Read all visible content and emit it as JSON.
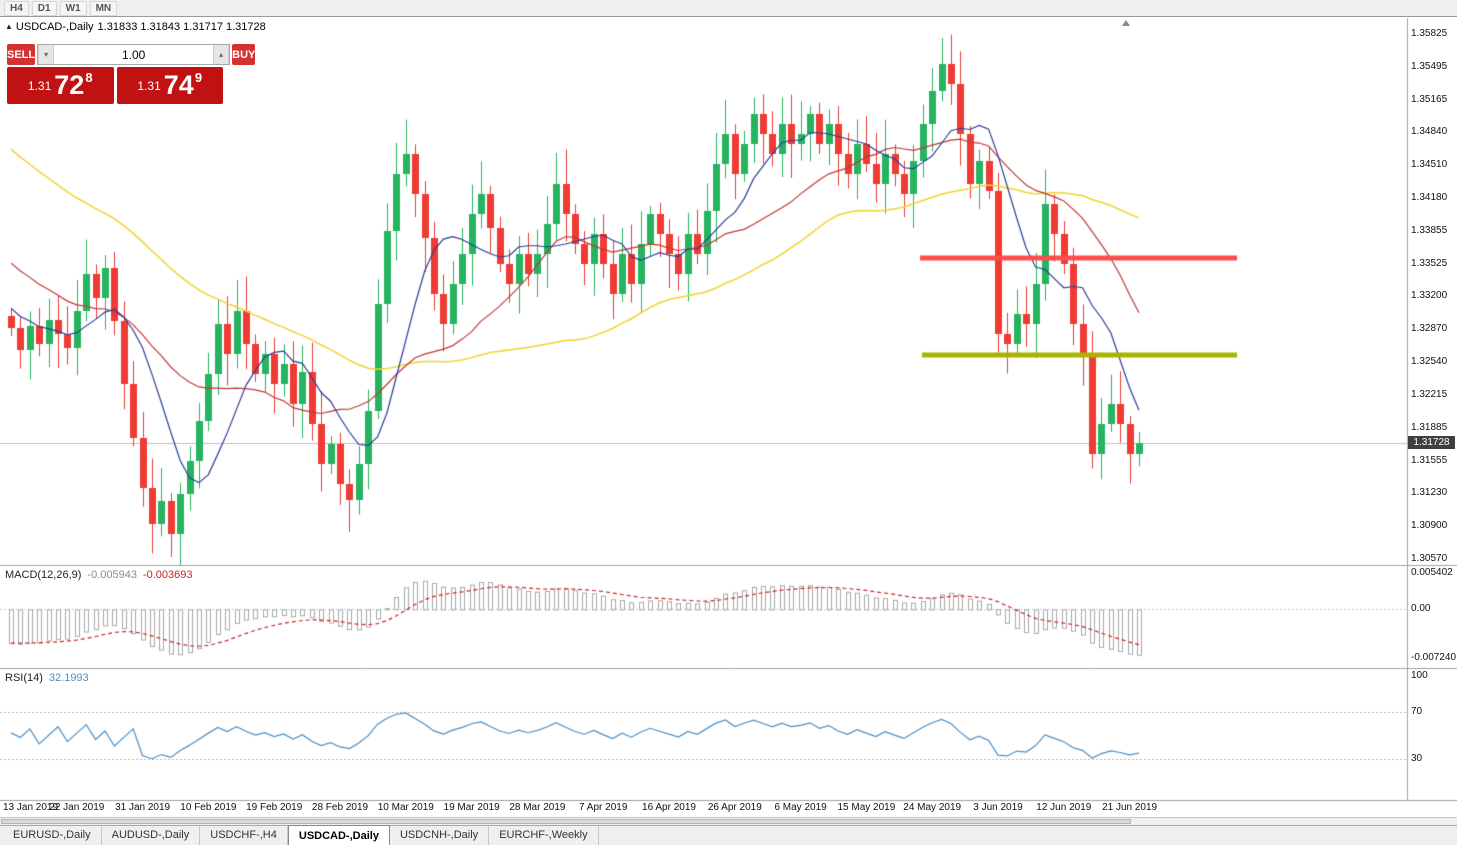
{
  "toolbar": {
    "timeframes": [
      "H4",
      "D1",
      "W1",
      "MN"
    ]
  },
  "chart": {
    "title_symbol": "USDCAD-,Daily",
    "title_ohlc": "1.31833 1.31843 1.31717 1.31728",
    "current_price": "1.31728",
    "price_axis_labels": [
      "1.35825",
      "1.35495",
      "1.35165",
      "1.34840",
      "1.34510",
      "1.34180",
      "1.33855",
      "1.33525",
      "1.33200",
      "1.32870",
      "1.32540",
      "1.32215",
      "1.31885",
      "1.31555",
      "1.31230",
      "1.30900",
      "1.30570"
    ],
    "date_labels": [
      "13 Jan 2019",
      "22 Jan 2019",
      "31 Jan 2019",
      "10 Feb 2019",
      "19 Feb 2019",
      "28 Feb 2019",
      "10 Mar 2019",
      "19 Mar 2019",
      "28 Mar 2019",
      "7 Apr 2019",
      "16 Apr 2019",
      "26 Apr 2019",
      "6 May 2019",
      "15 May 2019",
      "24 May 2019",
      "3 Jun 2019",
      "12 Jun 2019",
      "21 Jun 2019"
    ]
  },
  "trade_panel": {
    "sell_label": "SELL",
    "buy_label": "BUY",
    "volume": "1.00",
    "bid_prefix": "1.31",
    "bid_big": "72",
    "bid_sup": "8",
    "ask_prefix": "1.31",
    "ask_big": "74",
    "ask_sup": "9"
  },
  "macd_panel": {
    "name": "MACD(12,26,9)",
    "main_value": "-0.005943",
    "signal_value": "-0.003693",
    "axis_labels": [
      "0.005402",
      "0.00",
      "-0.007240"
    ]
  },
  "rsi_panel": {
    "name": "RSI(14)",
    "value": "32.1993",
    "axis_labels": [
      "100",
      "70",
      "30"
    ]
  },
  "tabs": [
    "EURUSD-,Daily",
    "AUDUSD-,Daily",
    "USDCHF-,H4",
    "USDCAD-,Daily",
    "USDCNH-,Daily",
    "EURCHF-,Weekly"
  ],
  "active_tab": "USDCAD-,Daily",
  "colors": {
    "candle_up": "#26b460",
    "candle_down": "#ee3b33",
    "ma_fast_blue": "#2c3e96",
    "ma_mid_red": "#c23737",
    "ma_slow_yellow": "#f2d22e",
    "hline_red": "#ff4d4d",
    "hline_olive": "#a8b400",
    "macd_hist": "#a9a9a9",
    "macd_signal": "#cc2929",
    "rsi_line": "#4a8fc7",
    "trade_button_red": "#d63131",
    "price_box_red": "#c01212",
    "badge_bg": "#3f3f3f"
  },
  "chart_data": {
    "type": "candlestick",
    "symbol": "USDCAD",
    "timeframe": "Daily",
    "ylim": [
      1.3051,
      1.3598
    ],
    "open_first": 1.33,
    "bid": 1.31728,
    "current_ohlc": {
      "open": 1.31833,
      "high": 1.31843,
      "low": 1.31717,
      "close": 1.31728
    },
    "closes": [
      1.3288,
      1.3266,
      1.329,
      1.3272,
      1.3296,
      1.3282,
      1.3268,
      1.3305,
      1.3342,
      1.3318,
      1.3348,
      1.3295,
      1.3232,
      1.3178,
      1.3128,
      1.3092,
      1.3115,
      1.3082,
      1.3122,
      1.3155,
      1.3195,
      1.3242,
      1.3292,
      1.3262,
      1.3305,
      1.3272,
      1.3242,
      1.3262,
      1.3232,
      1.3252,
      1.3212,
      1.3244,
      1.3192,
      1.3152,
      1.3172,
      1.3132,
      1.3116,
      1.3152,
      1.3205,
      1.3312,
      1.3385,
      1.3442,
      1.3462,
      1.3422,
      1.3378,
      1.3322,
      1.3292,
      1.3332,
      1.3362,
      1.3402,
      1.3422,
      1.3388,
      1.3352,
      1.3332,
      1.3362,
      1.3342,
      1.3362,
      1.3392,
      1.3432,
      1.3402,
      1.3372,
      1.3352,
      1.3382,
      1.3352,
      1.3322,
      1.3362,
      1.3332,
      1.3372,
      1.3402,
      1.3382,
      1.3362,
      1.3342,
      1.3382,
      1.3362,
      1.3405,
      1.3452,
      1.3482,
      1.3442,
      1.3472,
      1.3502,
      1.3482,
      1.3462,
      1.3492,
      1.3472,
      1.3482,
      1.3502,
      1.3472,
      1.3492,
      1.3462,
      1.3442,
      1.3472,
      1.3452,
      1.3432,
      1.3462,
      1.3442,
      1.3422,
      1.3455,
      1.3492,
      1.3525,
      1.3552,
      1.3532,
      1.3482,
      1.3432,
      1.3455,
      1.3425,
      1.3282,
      1.3272,
      1.3302,
      1.3292,
      1.3332,
      1.3412,
      1.3382,
      1.3352,
      1.3292,
      1.3262,
      1.3162,
      1.3192,
      1.3212,
      1.3192,
      1.3162,
      1.31728
    ],
    "lines": [
      {
        "type": "horizontal-segment",
        "price": 1.3358,
        "x_from": 920,
        "x_to": 1237,
        "color_key": "hline_red",
        "width": 5
      },
      {
        "type": "horizontal-segment",
        "price": 1.3261,
        "x_from": 922,
        "x_to": 1237,
        "color_key": "hline_olive",
        "width": 5
      }
    ],
    "macd": {
      "params": [
        12,
        26,
        9
      ],
      "last_main": -0.005943,
      "last_signal": -0.003693,
      "axis_range": [
        -0.00724,
        0.005402
      ]
    },
    "rsi": {
      "period": 14,
      "last": 32.1993,
      "levels": [
        70,
        30
      ],
      "range": [
        0,
        100
      ]
    }
  }
}
